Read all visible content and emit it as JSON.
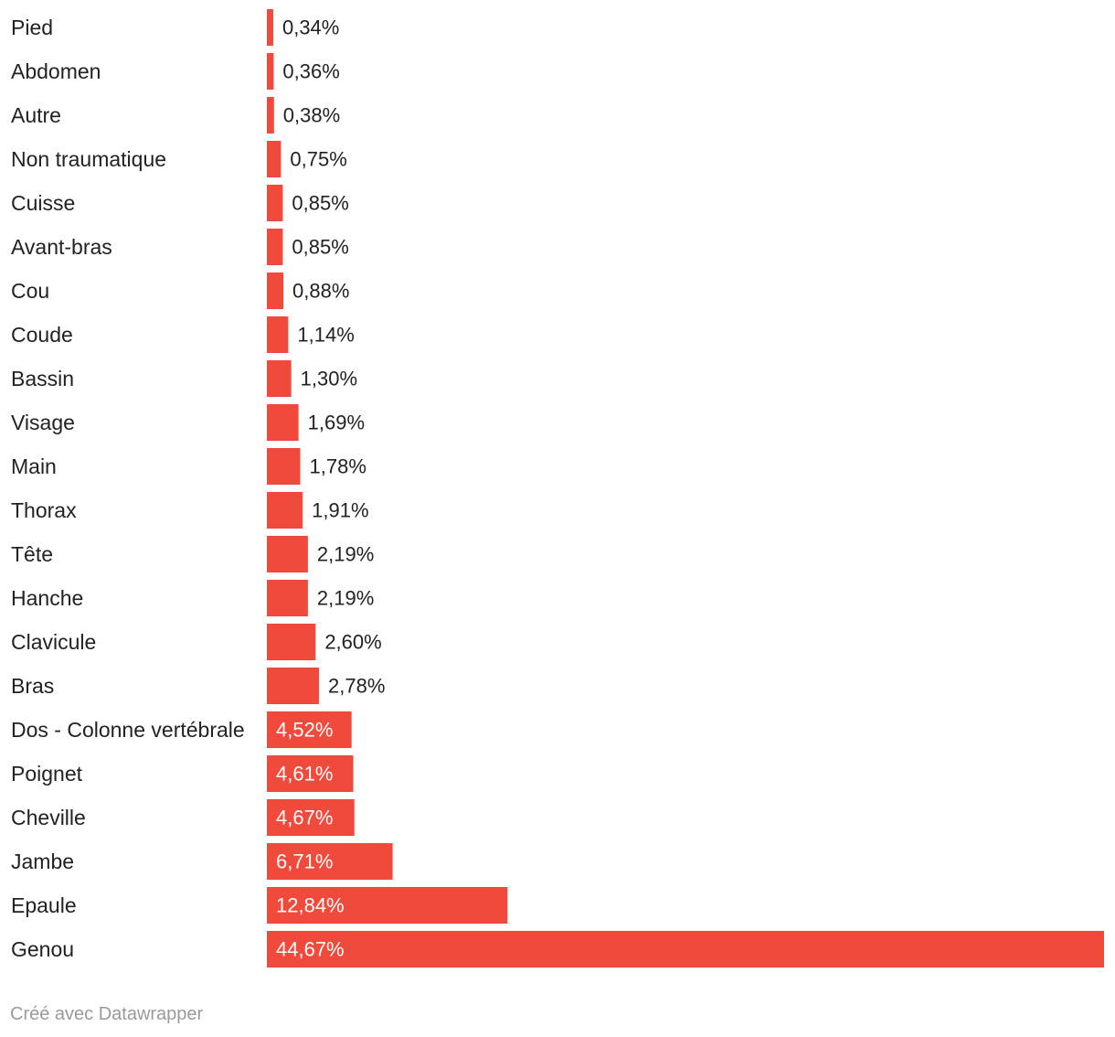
{
  "chart_data": {
    "type": "bar",
    "orientation": "horizontal",
    "categories": [
      "Pied",
      "Abdomen",
      "Autre",
      "Non traumatique",
      "Cuisse",
      "Avant-bras",
      "Cou",
      "Coude",
      "Bassin",
      "Visage",
      "Main",
      "Thorax",
      "Tête",
      "Hanche",
      "Clavicule",
      "Bras",
      "Dos - Colonne vertébrale",
      "Poignet",
      "Cheville",
      "Jambe",
      "Epaule",
      "Genou"
    ],
    "values": [
      0.34,
      0.36,
      0.38,
      0.75,
      0.85,
      0.85,
      0.88,
      1.14,
      1.3,
      1.69,
      1.78,
      1.91,
      2.19,
      2.19,
      2.6,
      2.78,
      4.52,
      4.61,
      4.67,
      6.71,
      12.84,
      44.67
    ],
    "value_labels": [
      "0,34%",
      "0,36%",
      "0,38%",
      "0,75%",
      "0,85%",
      "0,85%",
      "0,88%",
      "1,14%",
      "1,30%",
      "1,69%",
      "1,78%",
      "1,91%",
      "2,19%",
      "2,19%",
      "2,60%",
      "2,78%",
      "4,52%",
      "4,61%",
      "4,67%",
      "6,71%",
      "12,84%",
      "44,67%"
    ],
    "title": "",
    "xlabel": "",
    "ylabel": "",
    "xlim": [
      0,
      44.67
    ],
    "grid": false,
    "legend": "none",
    "bar_color": "#ef4a3c"
  },
  "footer": {
    "credit": "Créé avec Datawrapper"
  }
}
